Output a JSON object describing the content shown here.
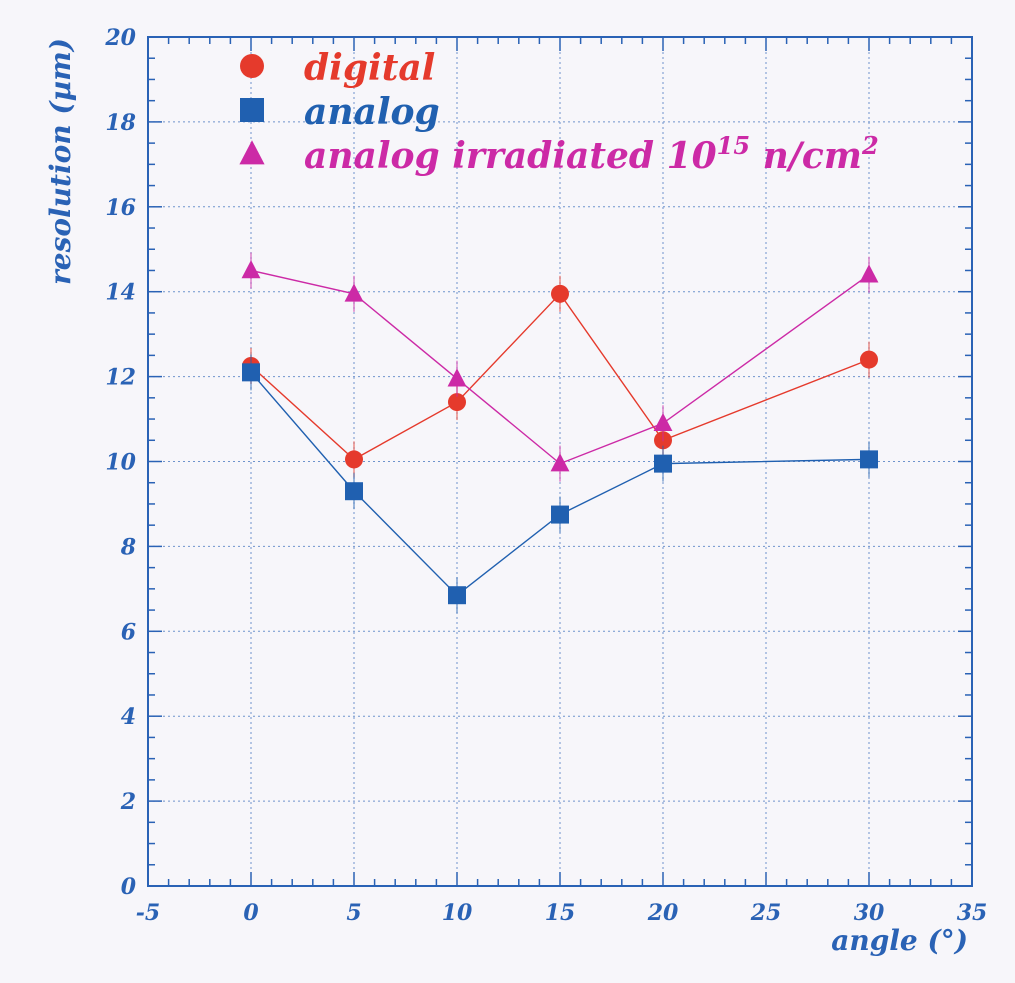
{
  "chart_data": {
    "type": "line",
    "title": "",
    "xlabel": "angle (°)",
    "ylabel": "resolution (µm)",
    "xlim": [
      -5,
      35
    ],
    "ylim": [
      0,
      20
    ],
    "xticks": [
      -5,
      0,
      5,
      10,
      15,
      20,
      25,
      30,
      35
    ],
    "yticks": [
      0,
      2,
      4,
      6,
      8,
      10,
      12,
      14,
      16,
      18,
      20
    ],
    "grid": true,
    "legend_position": "top-left",
    "series": [
      {
        "name": "digital",
        "marker": "circle",
        "color": "#e53a2c",
        "x": [
          0,
          5,
          10,
          15,
          20,
          30
        ],
        "y": [
          12.25,
          10.05,
          11.4,
          13.95,
          10.5,
          12.4
        ]
      },
      {
        "name": "analog",
        "marker": "square",
        "color": "#2060b0",
        "x": [
          0,
          5,
          10,
          15,
          20,
          30
        ],
        "y": [
          12.1,
          9.3,
          6.85,
          8.75,
          9.95,
          10.05
        ]
      },
      {
        "name": "analog irradiated 10",
        "name_sup": "15",
        "name_tail": " n/cm",
        "name_tail_sup": "2",
        "marker": "triangle",
        "color": "#cc2aa6",
        "x": [
          0,
          5,
          10,
          15,
          20,
          30
        ],
        "y": [
          14.5,
          13.95,
          11.95,
          9.95,
          10.9,
          14.4
        ]
      }
    ]
  }
}
